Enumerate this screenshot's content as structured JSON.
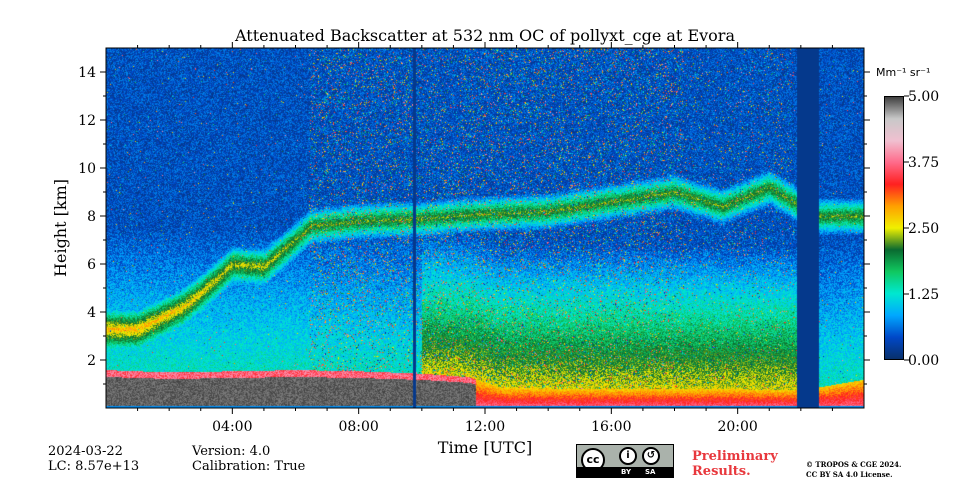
{
  "chart_data": {
    "type": "heatmap",
    "title": "Attenuated Backscatter at 532 nm OC of pollyxt_cge at Evora",
    "xlabel": "Time [UTC]",
    "ylabel": "Height [km]",
    "x_range_hours": [
      0,
      24
    ],
    "ylim": [
      0,
      15
    ],
    "xticks": [
      {
        "value": 4,
        "label": "04:00"
      },
      {
        "value": 8,
        "label": "08:00"
      },
      {
        "value": 12,
        "label": "12:00"
      },
      {
        "value": 16,
        "label": "16:00"
      },
      {
        "value": 20,
        "label": "20:00"
      }
    ],
    "yticks": [
      {
        "value": 2,
        "label": "2"
      },
      {
        "value": 4,
        "label": "4"
      },
      {
        "value": 6,
        "label": "6"
      },
      {
        "value": 8,
        "label": "8"
      },
      {
        "value": 10,
        "label": "10"
      },
      {
        "value": 12,
        "label": "12"
      },
      {
        "value": 14,
        "label": "14"
      }
    ],
    "colorbar": {
      "unit": "Mm⁻¹ sr⁻¹",
      "range": [
        0,
        5
      ],
      "ticks": [
        "0.00",
        "1.25",
        "2.50",
        "3.75",
        "5.00"
      ],
      "stops": [
        "#08306b",
        "#0048c8",
        "#00a8ff",
        "#00e8d0",
        "#10c860",
        "#0a6a30",
        "#f0f000",
        "#ffa000",
        "#ff2020",
        "#ff6a8a",
        "#f0c0d0",
        "#c8c8c8",
        "#404040"
      ]
    },
    "features": {
      "boundary_layer_top_km": [
        [
          0,
          1.6
        ],
        [
          2,
          1.5
        ],
        [
          4,
          1.55
        ],
        [
          6,
          1.6
        ],
        [
          8,
          1.55
        ],
        [
          10,
          1.45
        ],
        [
          11.5,
          1.3
        ],
        [
          12.5,
          0.85
        ],
        [
          16,
          0.8
        ],
        [
          20,
          0.8
        ],
        [
          22,
          0.75
        ],
        [
          24,
          1.2
        ]
      ],
      "elevated_layer_km": [
        [
          1,
          3.3
        ],
        [
          2.4,
          4.2
        ],
        [
          3,
          4.8
        ],
        [
          4,
          6.0
        ],
        [
          5,
          5.9
        ],
        [
          6.5,
          7.6
        ],
        [
          8,
          7.8
        ],
        [
          10,
          7.9
        ],
        [
          12,
          8.1
        ],
        [
          14,
          8.2
        ],
        [
          16,
          8.6
        ],
        [
          18,
          9.0
        ],
        [
          19.5,
          8.4
        ],
        [
          21,
          9.2
        ],
        [
          22.5,
          8.0
        ]
      ],
      "cirrus_top_km": 15,
      "data_gap_hours": [
        [
          21.85,
          22.55
        ]
      ],
      "profile_gap_hours": [
        [
          9.7,
          9.8
        ]
      ]
    }
  },
  "footer": {
    "date": "2024-03-22",
    "lc": "LC: 8.57e+13",
    "version": "Version: 4.0",
    "calibration": "Calibration: True",
    "preliminary_1": "Preliminary",
    "preliminary_2": "Results.",
    "copyright_1": "© TROPOS & CGE 2024.",
    "copyright_2": "CC BY SA 4.0 License.",
    "license_labels": [
      "BY",
      "SA"
    ],
    "license_badge": "cc-by-sa-icon"
  }
}
